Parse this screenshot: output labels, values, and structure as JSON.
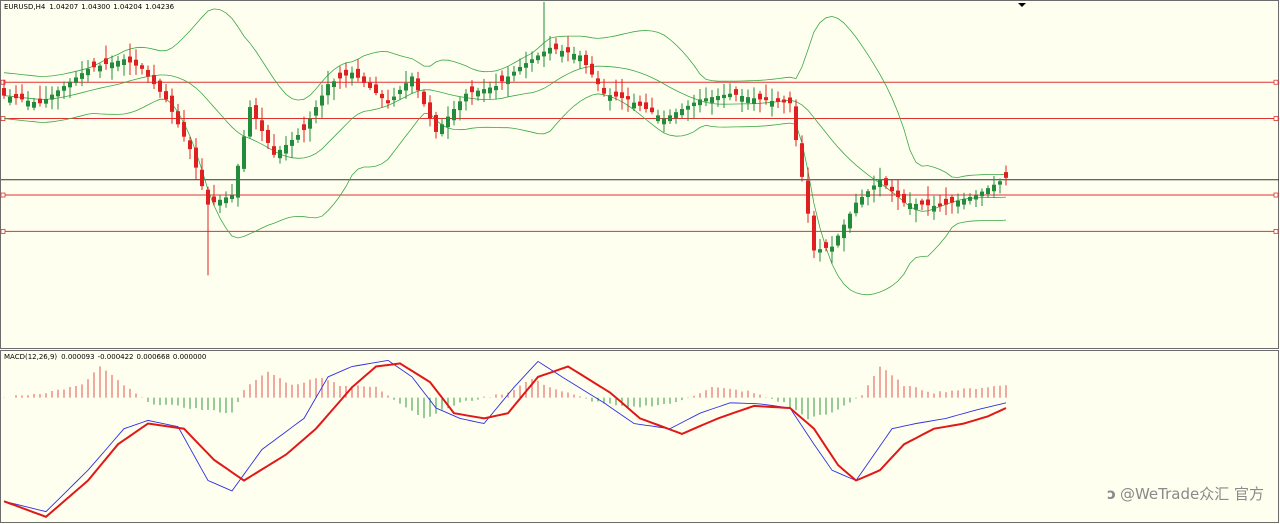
{
  "chart_data": [
    {
      "type": "candlestick",
      "symbol_label": "EURUSD,H4",
      "ohlc_label": [
        "1.04207",
        "1.04300",
        "1.04204",
        "1.04236"
      ],
      "ylim": [
        1.0302,
        1.0484
      ],
      "bars": 168,
      "colors": {
        "bull": "#228b3c",
        "bear": "#e02020",
        "bands": "#3aa845",
        "hline": "#e03030",
        "price_line": "#333333"
      },
      "horizontal_lines": [
        1.0441,
        1.0422,
        1.0382,
        1.0363
      ],
      "price_line": 1.039,
      "close_path": [
        [
          0,
          1.0434
        ],
        [
          6,
          1.043
        ],
        [
          14,
          1.0448
        ],
        [
          20,
          1.0453
        ],
        [
          23,
          1.0448
        ],
        [
          27,
          1.0432
        ],
        [
          31,
          1.0406
        ],
        [
          34,
          1.0377
        ],
        [
          38,
          1.0382
        ],
        [
          41,
          1.0428
        ],
        [
          45,
          1.0403
        ],
        [
          50,
          1.0416
        ],
        [
          54,
          1.044
        ],
        [
          58,
          1.0446
        ],
        [
          64,
          1.043
        ],
        [
          68,
          1.0444
        ],
        [
          72,
          1.0415
        ],
        [
          77,
          1.0435
        ],
        [
          82,
          1.0439
        ],
        [
          86,
          1.0449
        ],
        [
          91,
          1.0459
        ],
        [
          96,
          1.0455
        ],
        [
          100,
          1.0435
        ],
        [
          104,
          1.0432
        ],
        [
          110,
          1.0422
        ],
        [
          116,
          1.0432
        ],
        [
          121,
          1.0435
        ],
        [
          126,
          1.0432
        ],
        [
          131,
          1.043
        ],
        [
          135,
          1.0353
        ],
        [
          138,
          1.0355
        ],
        [
          142,
          1.0378
        ],
        [
          146,
          1.039
        ],
        [
          150,
          1.0378
        ],
        [
          156,
          1.0376
        ],
        [
          162,
          1.0382
        ],
        [
          167,
          1.0391
        ]
      ],
      "spikes": [
        {
          "bar": 34,
          "low": 1.034
        },
        {
          "bar": 90,
          "high": 1.0483
        },
        {
          "bar": 135,
          "low": 1.0349
        }
      ]
    },
    {
      "type": "macd",
      "label": "MACD(12,26,9)",
      "values_label": [
        "0.000093",
        "-0.000422",
        "0.000668",
        "0.000000"
      ],
      "ylim": [
        -0.0012,
        0.00045
      ],
      "colors": {
        "hist_pos": "#e05050",
        "hist_neg": "#2e9a40",
        "signal": "#e01818",
        "macd": "#3030e0"
      },
      "macd_path": [
        [
          0,
          -0.001
        ],
        [
          7,
          -0.0011
        ],
        [
          14,
          -0.0007
        ],
        [
          20,
          -0.0003
        ],
        [
          24,
          -0.00022
        ],
        [
          29,
          -0.00028
        ],
        [
          34,
          -0.0008
        ],
        [
          38,
          -0.0009
        ],
        [
          43,
          -0.0005
        ],
        [
          50,
          -0.0002
        ],
        [
          54,
          0.0002
        ],
        [
          58,
          0.0003
        ],
        [
          64,
          0.00036
        ],
        [
          68,
          0.0002
        ],
        [
          72,
          -0.0001
        ],
        [
          76,
          -0.0002
        ],
        [
          80,
          -0.00025
        ],
        [
          85,
          0.0001
        ],
        [
          89,
          0.00035
        ],
        [
          93,
          0.0002
        ],
        [
          100,
          -5e-05
        ],
        [
          105,
          -0.00025
        ],
        [
          111,
          -0.0003
        ],
        [
          116,
          -0.00015
        ],
        [
          121,
          -5e-05
        ],
        [
          126,
          -6e-05
        ],
        [
          131,
          -0.0001
        ],
        [
          135,
          -0.00045
        ],
        [
          138,
          -0.0007
        ],
        [
          142,
          -0.0008
        ],
        [
          145,
          -0.00055
        ],
        [
          148,
          -0.0003
        ],
        [
          152,
          -0.00025
        ],
        [
          157,
          -0.0002
        ],
        [
          162,
          -0.00012
        ],
        [
          167,
          -5e-05
        ]
      ],
      "signal_path": [
        [
          0,
          -0.001
        ],
        [
          7,
          -0.00115
        ],
        [
          14,
          -0.0008
        ],
        [
          19,
          -0.00045
        ],
        [
          24,
          -0.00025
        ],
        [
          30,
          -0.0003
        ],
        [
          35,
          -0.0006
        ],
        [
          40,
          -0.0008
        ],
        [
          47,
          -0.00055
        ],
        [
          52,
          -0.0003
        ],
        [
          58,
          0.0001
        ],
        [
          62,
          0.0003
        ],
        [
          66,
          0.00033
        ],
        [
          71,
          0.00015
        ],
        [
          75,
          -0.00015
        ],
        [
          80,
          -0.0002
        ],
        [
          84,
          -0.00015
        ],
        [
          89,
          0.0002
        ],
        [
          94,
          0.0003
        ],
        [
          101,
          5e-05
        ],
        [
          106,
          -0.0002
        ],
        [
          113,
          -0.00035
        ],
        [
          119,
          -0.0002
        ],
        [
          125,
          -8e-05
        ],
        [
          131,
          -0.0001
        ],
        [
          135,
          -0.0003
        ],
        [
          139,
          -0.00065
        ],
        [
          142,
          -0.0008
        ],
        [
          146,
          -0.0007
        ],
        [
          150,
          -0.00045
        ],
        [
          155,
          -0.0003
        ],
        [
          160,
          -0.00025
        ],
        [
          164,
          -0.00018
        ],
        [
          167,
          -0.0001
        ]
      ],
      "hist_path": [
        [
          0,
          0.0
        ],
        [
          7,
          5e-05
        ],
        [
          13,
          0.00012
        ],
        [
          16,
          0.0003
        ],
        [
          20,
          0.00012
        ],
        [
          24,
          -5e-05
        ],
        [
          31,
          -0.0001
        ],
        [
          38,
          -0.00015
        ],
        [
          40,
          8e-05
        ],
        [
          44,
          0.00025
        ],
        [
          48,
          0.00012
        ],
        [
          53,
          0.0002
        ],
        [
          56,
          0.00012
        ],
        [
          62,
          0.0001
        ],
        [
          66,
          -5e-05
        ],
        [
          70,
          -0.0002
        ],
        [
          76,
          -5e-05
        ],
        [
          84,
          5e-05
        ],
        [
          88,
          0.00018
        ],
        [
          92,
          8e-05
        ],
        [
          98,
          -3e-05
        ],
        [
          104,
          -0.0001
        ],
        [
          112,
          -5e-05
        ],
        [
          118,
          0.0001
        ],
        [
          124,
          6e-05
        ],
        [
          130,
          -5e-05
        ],
        [
          134,
          -0.0002
        ],
        [
          138,
          -0.00015
        ],
        [
          143,
          3e-05
        ],
        [
          146,
          0.0003
        ],
        [
          150,
          0.00012
        ],
        [
          155,
          5e-05
        ],
        [
          160,
          8e-05
        ],
        [
          167,
          0.00012
        ]
      ]
    }
  ],
  "watermark": "@WeTrade众汇 官方"
}
